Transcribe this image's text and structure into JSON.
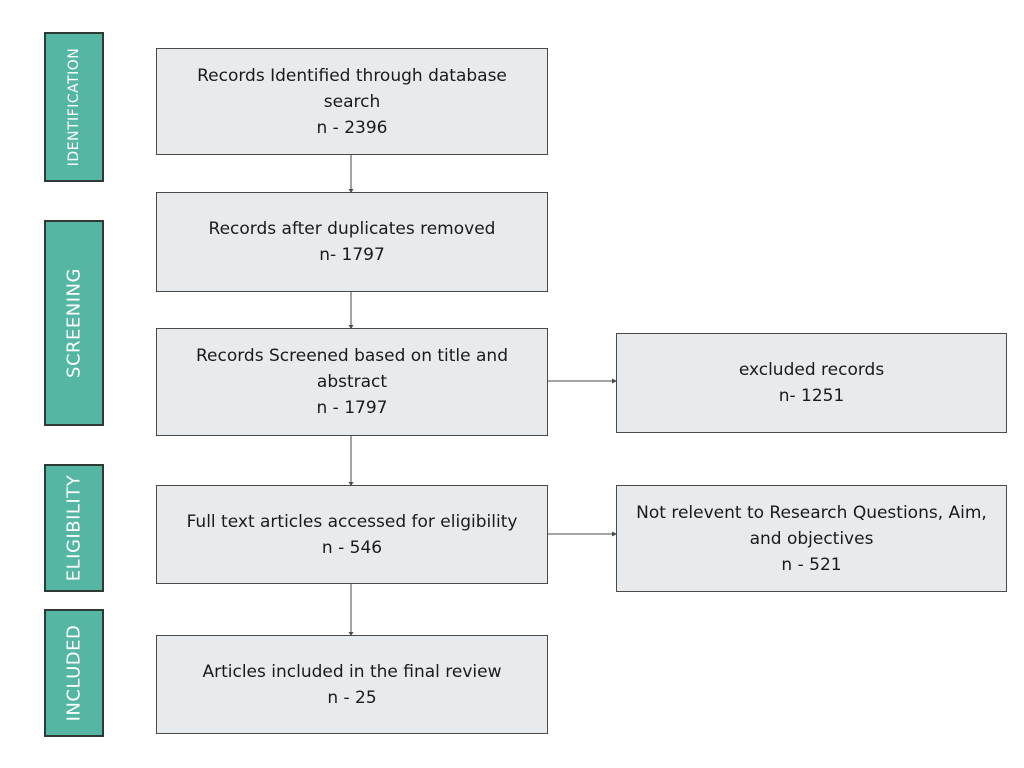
{
  "stages": {
    "identification": "IDENTIFICATION",
    "screening": "SCREENING",
    "eligibility": "ELIGIBILITY",
    "included": "INCLUDED"
  },
  "boxes": {
    "identified": {
      "line1": "Records Identified through database",
      "line2": "search",
      "count": "n - 2396"
    },
    "duplicates_removed": {
      "line1": "Records after duplicates removed",
      "count": "n- 1797"
    },
    "screened": {
      "line1": "Records Screened based on title and",
      "line2": "abstract",
      "count": "n - 1797"
    },
    "excluded": {
      "line1": "excluded records",
      "count": "n- 1251"
    },
    "full_text": {
      "line1": "Full text articles accessed for eligibility",
      "count": "n - 546"
    },
    "not_relevant": {
      "line1": "Not relevent to Research Questions, Aim,",
      "line2": "and objectives",
      "count": "n - 521"
    },
    "included": {
      "line1": "Articles included in the final review",
      "count": "n - 25"
    }
  },
  "colors": {
    "stage_fill": "#55b6a3",
    "box_fill": "#e8ebee",
    "line": "#4a4a4a"
  }
}
